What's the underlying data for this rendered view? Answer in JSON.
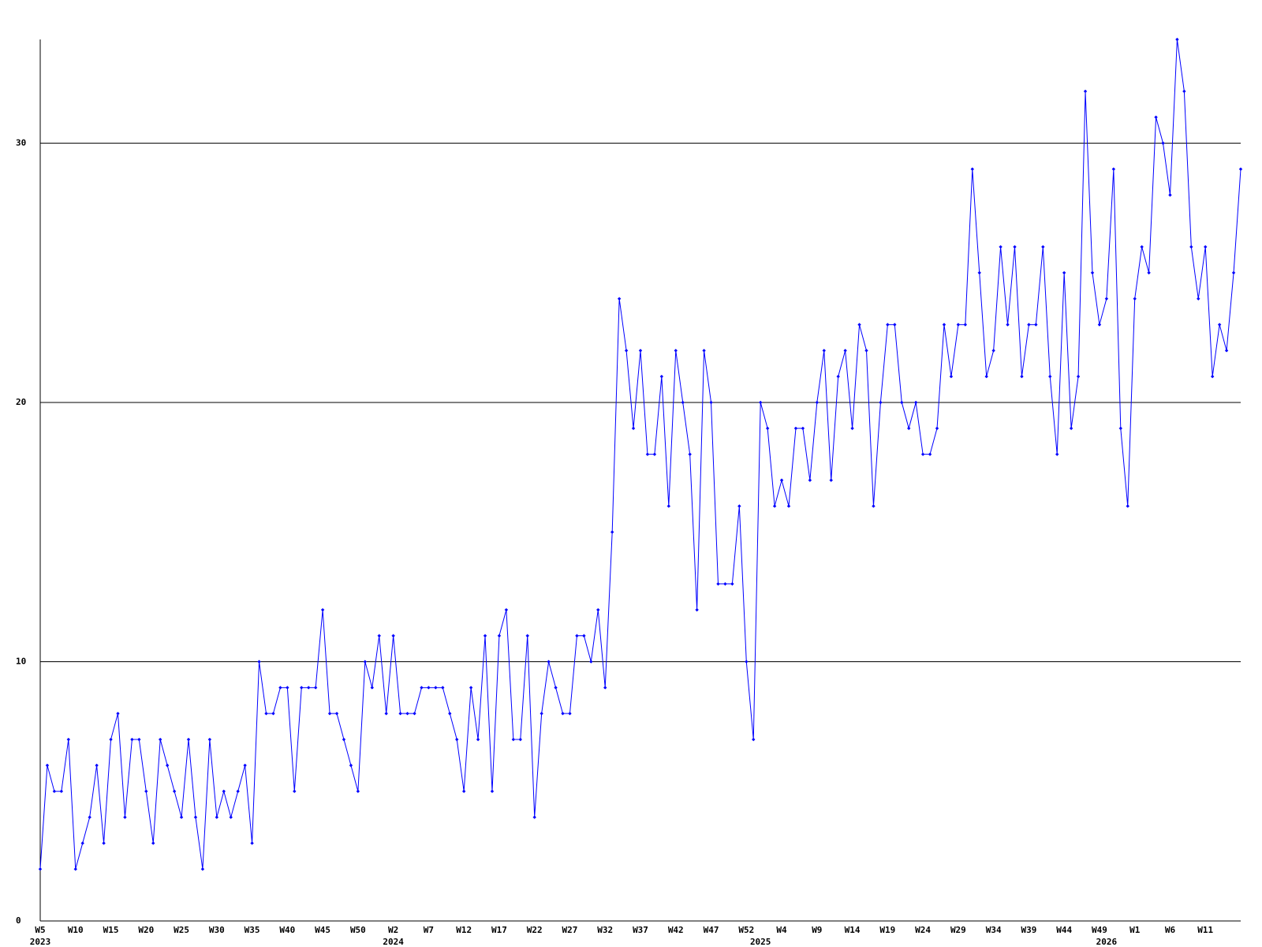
{
  "chart_data": {
    "type": "line",
    "categories": [
      "W5",
      null,
      null,
      null,
      null,
      "W10",
      null,
      null,
      null,
      null,
      "W15",
      null,
      null,
      null,
      null,
      "W20",
      null,
      null,
      null,
      null,
      "W25",
      null,
      null,
      null,
      null,
      "W30",
      null,
      null,
      null,
      null,
      "W35",
      null,
      null,
      null,
      null,
      "W40",
      null,
      null,
      null,
      null,
      "W45",
      null,
      null,
      null,
      null,
      "W50",
      null,
      null,
      null,
      null,
      "W2",
      null,
      null,
      null,
      null,
      "W7",
      null,
      null,
      null,
      null,
      "W12",
      null,
      null,
      null,
      null,
      "W17",
      null,
      null,
      null,
      null,
      "W22",
      null,
      null,
      null,
      null,
      "W27",
      null,
      null,
      null,
      null,
      "W32",
      null,
      null,
      null,
      null,
      "W37",
      null,
      null,
      null,
      null,
      "W42",
      null,
      null,
      null,
      null,
      "W47",
      null,
      null,
      null,
      null,
      "W52",
      null,
      null,
      null,
      null,
      "W4",
      null,
      null,
      null,
      null,
      "W9",
      null,
      null,
      null,
      null,
      "W14",
      null,
      null,
      null,
      null,
      "W19",
      null,
      null,
      null,
      null,
      "W24",
      null,
      null,
      null,
      null,
      "W29",
      null,
      null,
      null,
      null,
      "W34",
      null,
      null,
      null,
      null,
      "W39",
      null,
      null,
      null,
      null,
      "W44",
      null,
      null,
      null,
      null,
      "W49",
      null,
      null,
      null,
      null,
      "W1",
      null,
      null,
      null,
      null,
      "W6",
      null,
      null,
      null,
      null,
      "W11",
      null,
      null,
      null,
      null,
      null
    ],
    "category_years": [
      "2023",
      null,
      null,
      null,
      null,
      null,
      null,
      null,
      null,
      null,
      null,
      null,
      null,
      null,
      null,
      null,
      null,
      null,
      null,
      null,
      null,
      null,
      null,
      null,
      null,
      null,
      null,
      null,
      null,
      null,
      null,
      null,
      null,
      null,
      null,
      null,
      null,
      null,
      null,
      null,
      null,
      null,
      null,
      null,
      null,
      null,
      null,
      null,
      null,
      null,
      "2024",
      null,
      null,
      null,
      null,
      null,
      null,
      null,
      null,
      null,
      null,
      null,
      null,
      null,
      null,
      null,
      null,
      null,
      null,
      null,
      null,
      null,
      null,
      null,
      null,
      null,
      null,
      null,
      null,
      null,
      null,
      null,
      null,
      null,
      null,
      null,
      null,
      null,
      null,
      null,
      null,
      null,
      null,
      null,
      null,
      null,
      null,
      null,
      null,
      null,
      null,
      null,
      "2025",
      null,
      null,
      null,
      null,
      null,
      null,
      null,
      null,
      null,
      null,
      null,
      null,
      null,
      null,
      null,
      null,
      null,
      null,
      null,
      null,
      null,
      null,
      null,
      null,
      null,
      null,
      null,
      null,
      null,
      null,
      null,
      null,
      null,
      null,
      null,
      null,
      null,
      null,
      null,
      null,
      null,
      null,
      null,
      null,
      null,
      null,
      null,
      null,
      "2026",
      null,
      null,
      null,
      null,
      null,
      null,
      null,
      null,
      null,
      null,
      null,
      null,
      null,
      null,
      null
    ],
    "series": [
      {
        "color": "#0000ff",
        "values": [
          2,
          6,
          5,
          5,
          7,
          2,
          3,
          4,
          6,
          3,
          7,
          8,
          4,
          7,
          7,
          5,
          3,
          7,
          6,
          5,
          4,
          7,
          4,
          2,
          7,
          4,
          5,
          4,
          5,
          6,
          3,
          10,
          8,
          8,
          9,
          9,
          5,
          9,
          9,
          9,
          12,
          8,
          8,
          7,
          6,
          5,
          10,
          9,
          11,
          8,
          11,
          8,
          8,
          8,
          9,
          9,
          9,
          9,
          8,
          7,
          5,
          9,
          7,
          11,
          5,
          11,
          12,
          7,
          7,
          11,
          4,
          8,
          10,
          9,
          8,
          8,
          11,
          11,
          10,
          12,
          9,
          15,
          24,
          22,
          19,
          22,
          18,
          18,
          21,
          16,
          22,
          20,
          18,
          12,
          22,
          20,
          13,
          13,
          13,
          16,
          10,
          7,
          20,
          19,
          16,
          17,
          16,
          19,
          19,
          17,
          20,
          22,
          17,
          21,
          22,
          19,
          23,
          22,
          16,
          20,
          23,
          23,
          20,
          19,
          20,
          18,
          18,
          19,
          23,
          21,
          23,
          23,
          29,
          25,
          21,
          22,
          26,
          23,
          26,
          21,
          23,
          23,
          26,
          21,
          18,
          25,
          19,
          21,
          32,
          25,
          23,
          24,
          29,
          19,
          16,
          24,
          26,
          25,
          31,
          30,
          28,
          34,
          32,
          26,
          24,
          26,
          21,
          23,
          22,
          25,
          29
        ]
      }
    ],
    "ylim": [
      0,
      34
    ],
    "yticks": [
      0,
      10,
      20,
      30
    ],
    "grid": true
  }
}
